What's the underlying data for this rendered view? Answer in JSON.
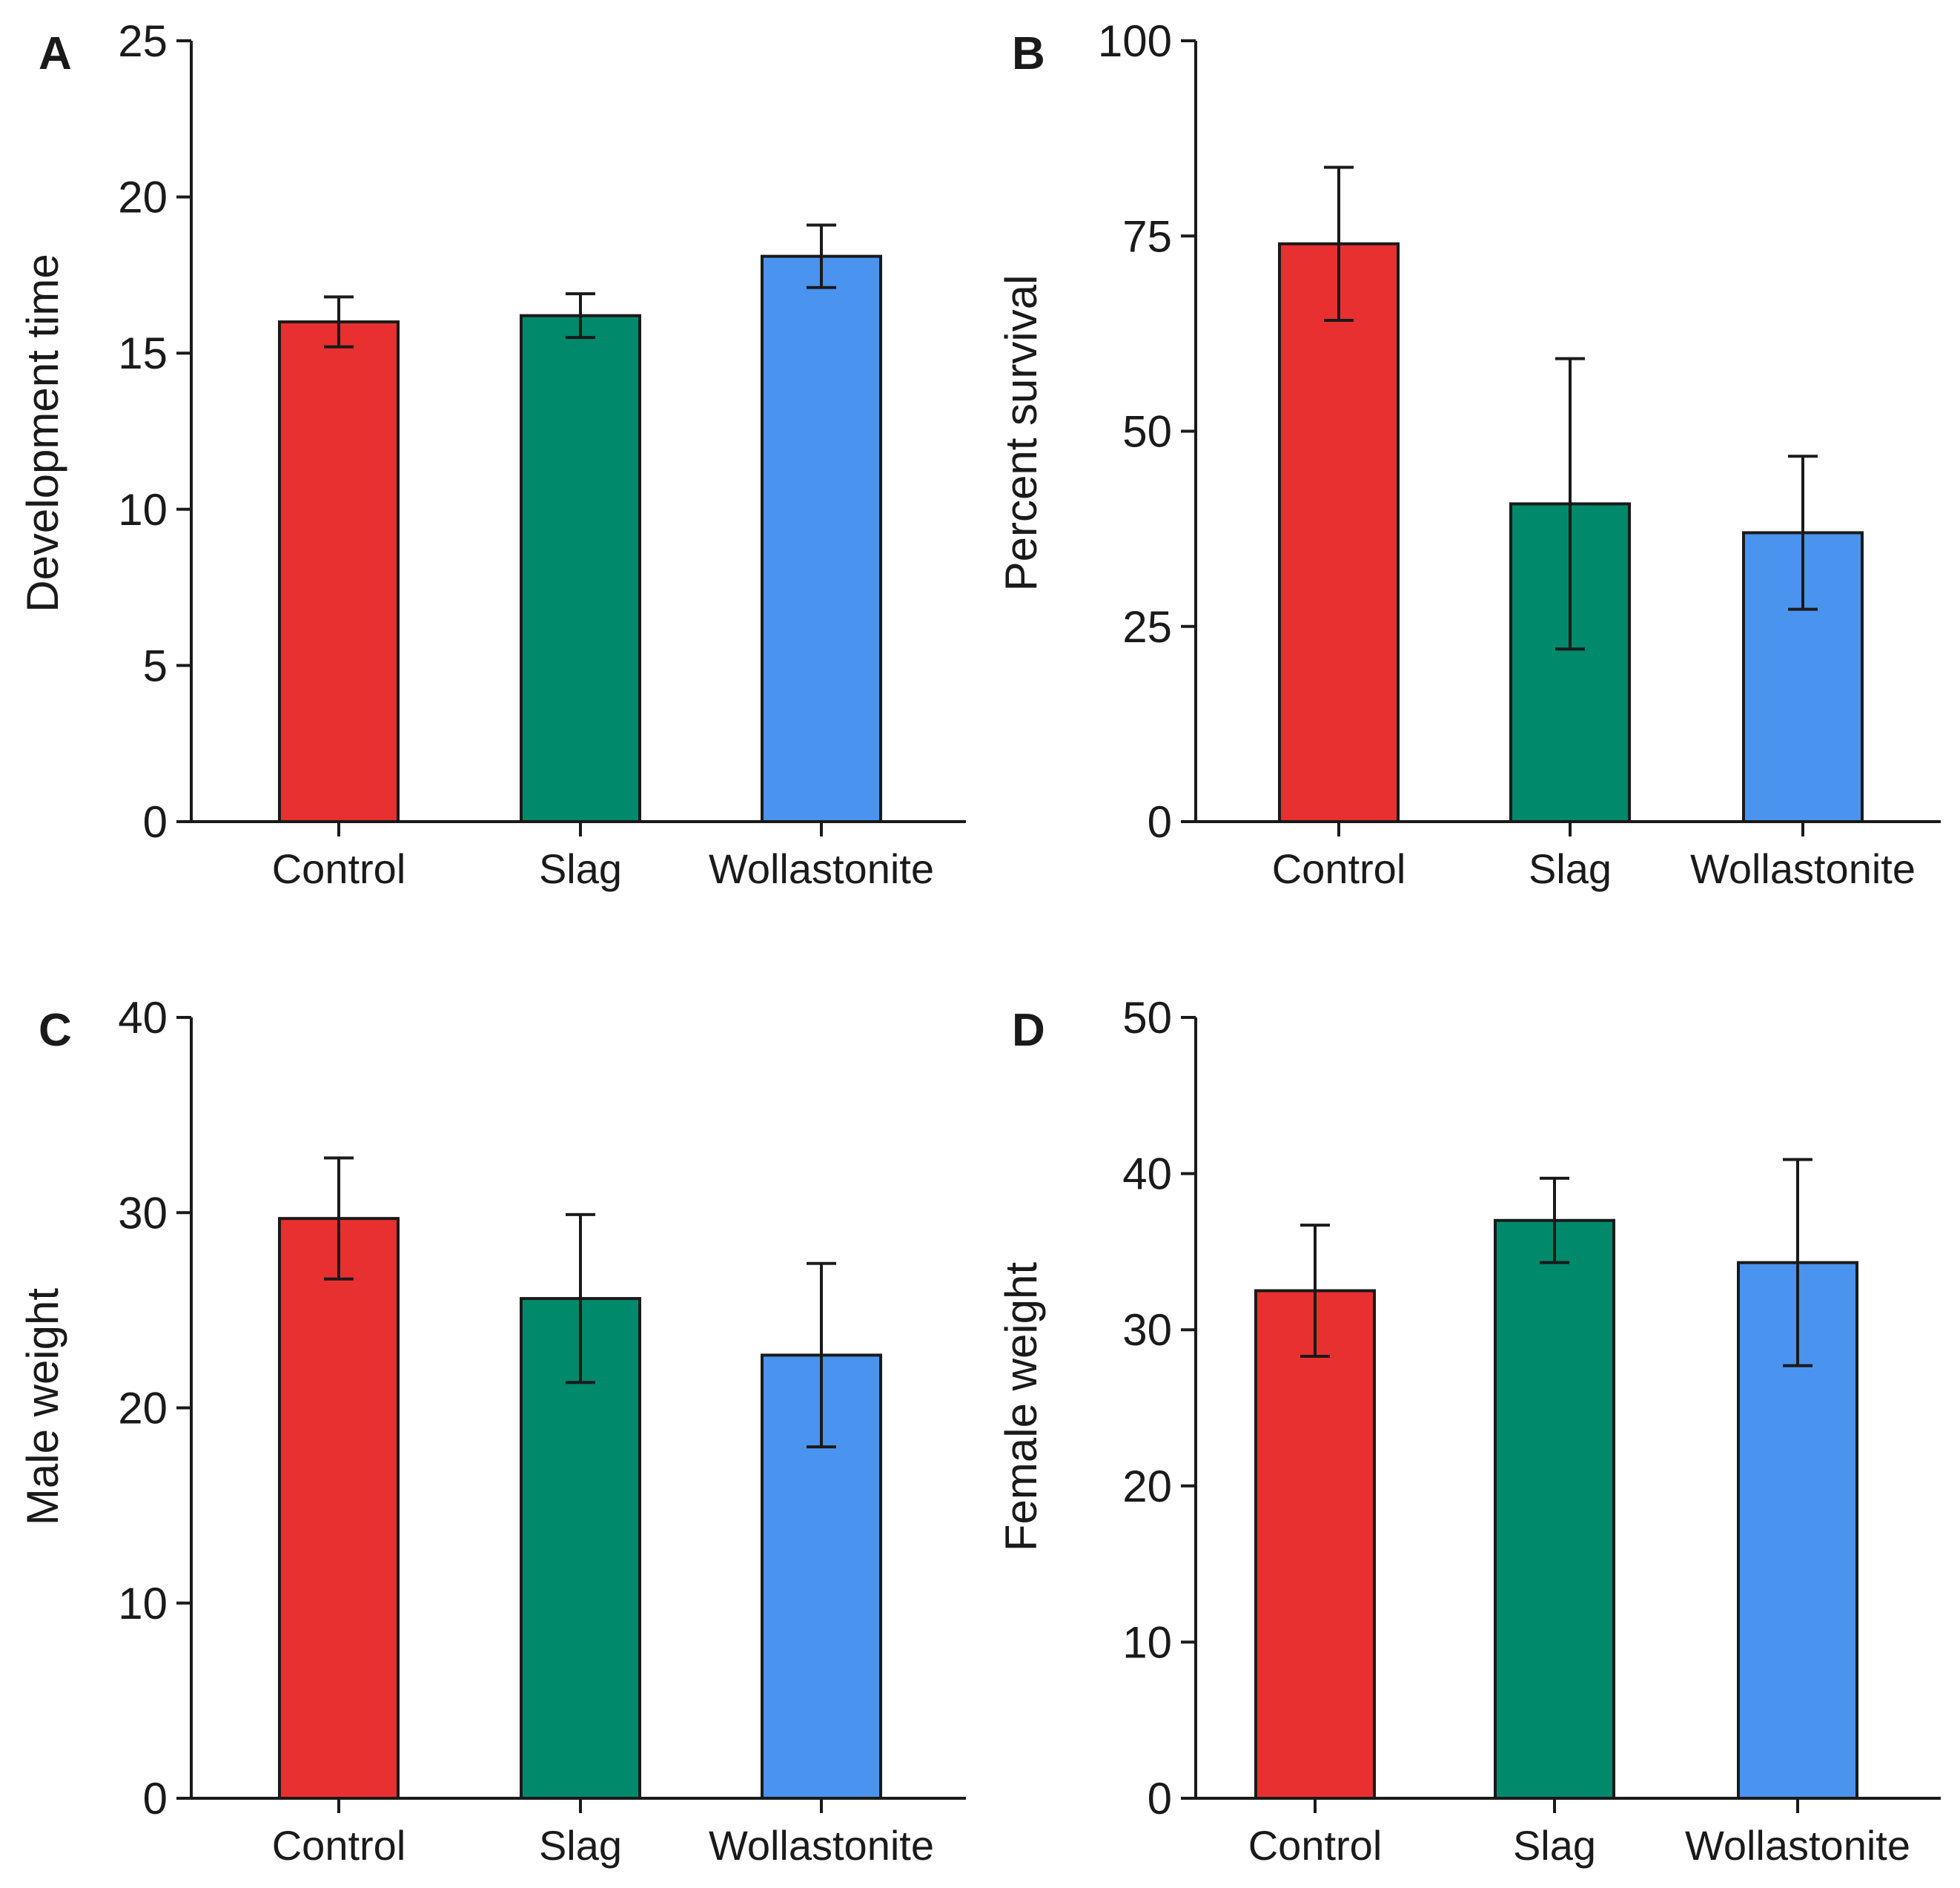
{
  "chart_data": [
    {
      "type": "bar",
      "panel": "A",
      "categories": [
        "Control",
        "Slag",
        "Wollastonite"
      ],
      "values": [
        16.0,
        16.2,
        18.1
      ],
      "errors": [
        0.8,
        0.7,
        1.0
      ],
      "colors": [
        "#e83030",
        "#00896b",
        "#4a94ef"
      ],
      "ylabel": "Development time",
      "ylim": [
        0,
        25
      ],
      "yticks": [
        0,
        5,
        10,
        15,
        20,
        25
      ]
    },
    {
      "type": "bar",
      "panel": "B",
      "categories": [
        "Control",
        "Slag",
        "Wollastonite"
      ],
      "values": [
        74.0,
        40.7,
        37.0
      ],
      "errors": [
        9.8,
        18.6,
        9.8
      ],
      "colors": [
        "#e83030",
        "#00896b",
        "#4a94ef"
      ],
      "ylabel": "Percent survival",
      "ylim": [
        0,
        100
      ],
      "yticks": [
        0,
        25,
        50,
        75,
        100
      ]
    },
    {
      "type": "bar",
      "panel": "C",
      "categories": [
        "Control",
        "Slag",
        "Wollastonite"
      ],
      "values": [
        29.7,
        25.6,
        22.7
      ],
      "errors": [
        3.1,
        4.3,
        4.7
      ],
      "colors": [
        "#e83030",
        "#00896b",
        "#4a94ef"
      ],
      "ylabel": "Male weight",
      "ylim": [
        0,
        40
      ],
      "yticks": [
        0,
        10,
        20,
        30,
        40
      ]
    },
    {
      "type": "bar",
      "panel": "D",
      "categories": [
        "Control",
        "Slag",
        "Wollastonite"
      ],
      "values": [
        32.5,
        37.0,
        34.3
      ],
      "errors": [
        4.2,
        2.7,
        6.6
      ],
      "colors": [
        "#e83030",
        "#00896b",
        "#4a94ef"
      ],
      "ylabel": "Female weight",
      "ylim": [
        0,
        50
      ],
      "yticks": [
        0,
        10,
        20,
        30,
        40,
        50
      ]
    }
  ]
}
